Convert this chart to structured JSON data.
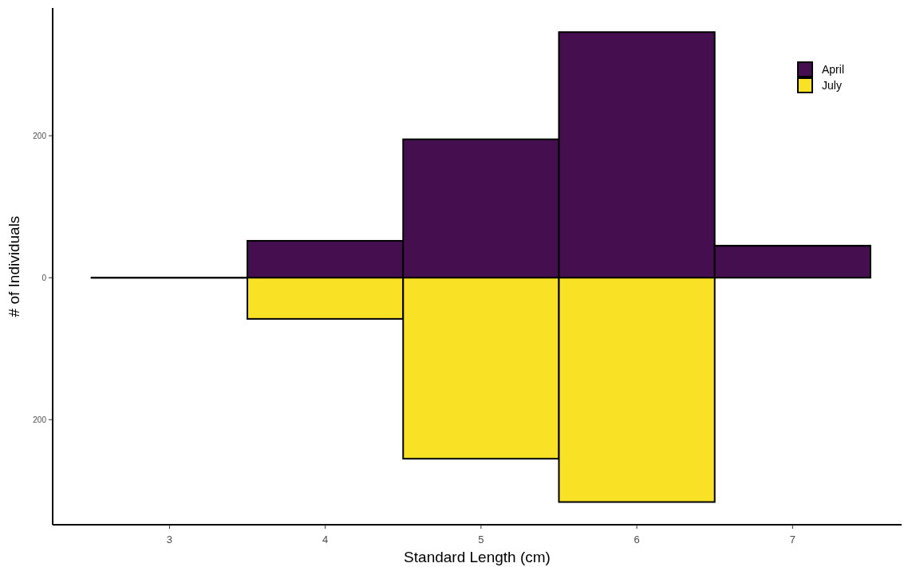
{
  "chart_data": {
    "type": "bar",
    "xlabel": "Standard Length (cm)",
    "ylabel": "# of Individuals",
    "x": [
      3,
      4,
      5,
      6,
      7
    ],
    "series": [
      {
        "name": "April",
        "color": "#440e4f",
        "values": [
          0,
          52,
          195,
          346,
          45
        ]
      },
      {
        "name": "July",
        "color": "#f9e225",
        "values": [
          0,
          -58,
          -255,
          -316,
          0
        ]
      }
    ],
    "xlim": [
      2.25,
      7.7
    ],
    "xticks": [
      3,
      4,
      5,
      6,
      7
    ],
    "ylim": [
      -348,
      380
    ],
    "yticks": [
      {
        "value": 200,
        "label": "200"
      },
      0,
      {
        "value": -200,
        "label": "200"
      }
    ],
    "stacked": true,
    "grid": false,
    "legend": "top right"
  }
}
